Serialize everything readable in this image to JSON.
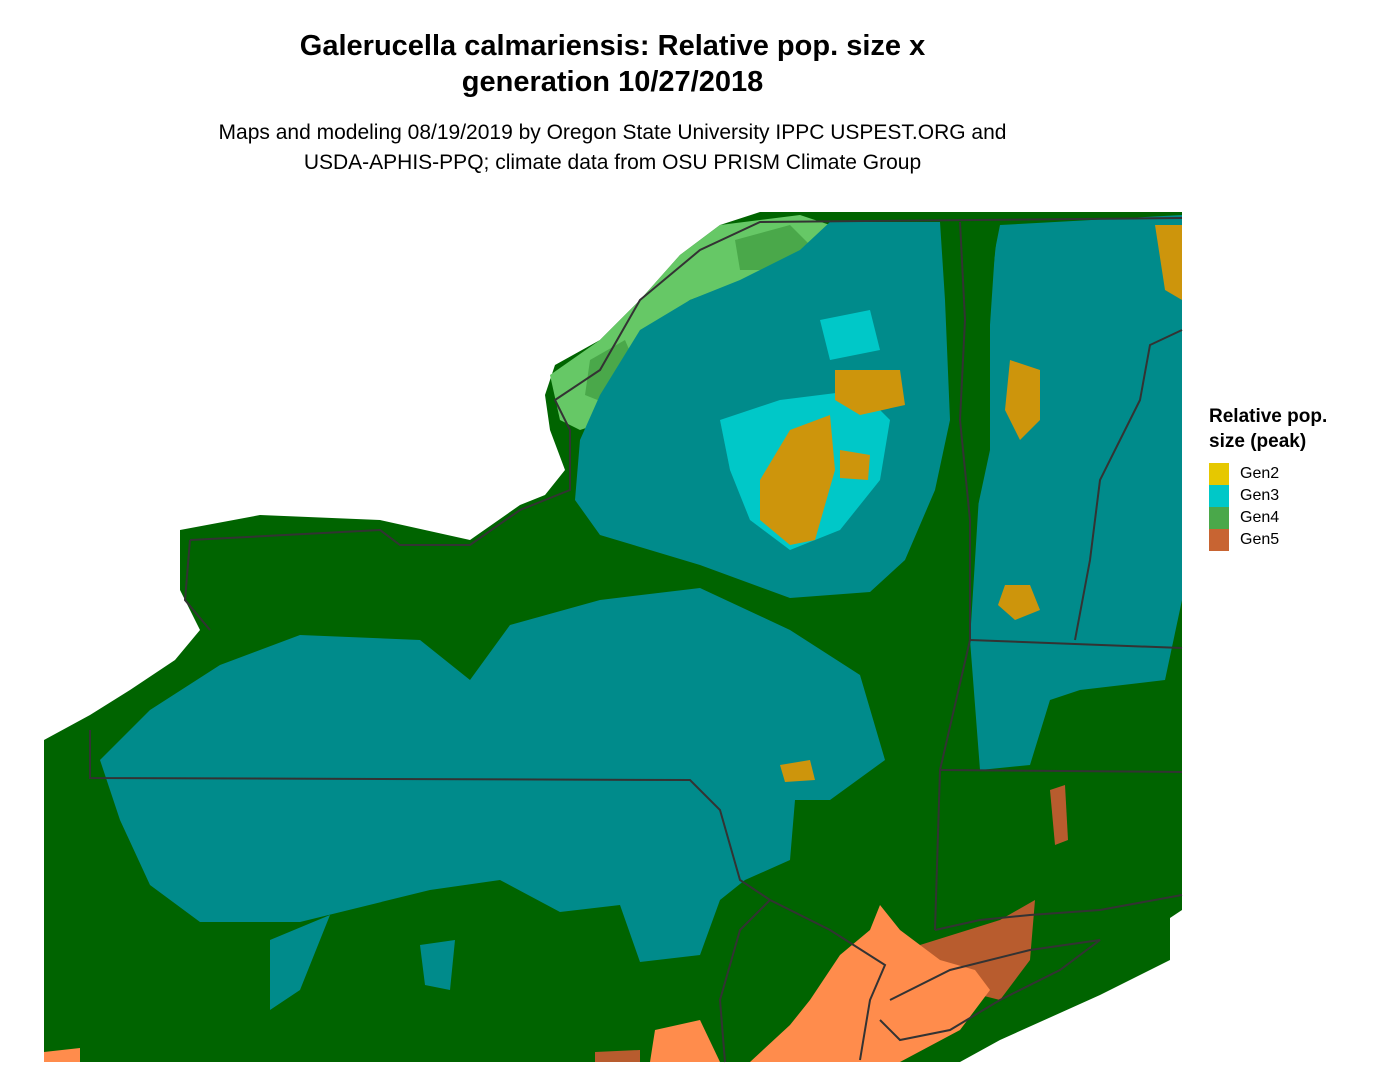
{
  "title": "Galerucella calmariensis: Relative pop. size x generation 10/27/2018",
  "title_lines": [
    "Galerucella calmariensis: Relative pop. size x",
    "generation 10/27/2018"
  ],
  "subtitle_lines": [
    "Maps and modeling 08/19/2019 by Oregon State University IPPC USPEST.ORG and",
    "USDA-APHIS-PPQ; climate data from OSU PRISM Climate Group"
  ],
  "legend": {
    "title_lines": [
      "Relative pop.",
      "size (peak)"
    ],
    "items": [
      {
        "label": "Gen2",
        "color": "#e6c800"
      },
      {
        "label": "Gen3",
        "color": "#00c8c8"
      },
      {
        "label": "Gen4",
        "color": "#4aa84a"
      },
      {
        "label": "Gen5",
        "color": "#c86432"
      }
    ]
  },
  "map_colors": {
    "dark_green": "#006400",
    "teal": "#008b8b",
    "light_green": "#66c866",
    "cyan": "#00c8c8",
    "goldenrod": "#cd950c",
    "orange": "#ff8c4c",
    "brown": "#b85c2e",
    "mid_green": "#4aa84a",
    "border": "#333333"
  }
}
